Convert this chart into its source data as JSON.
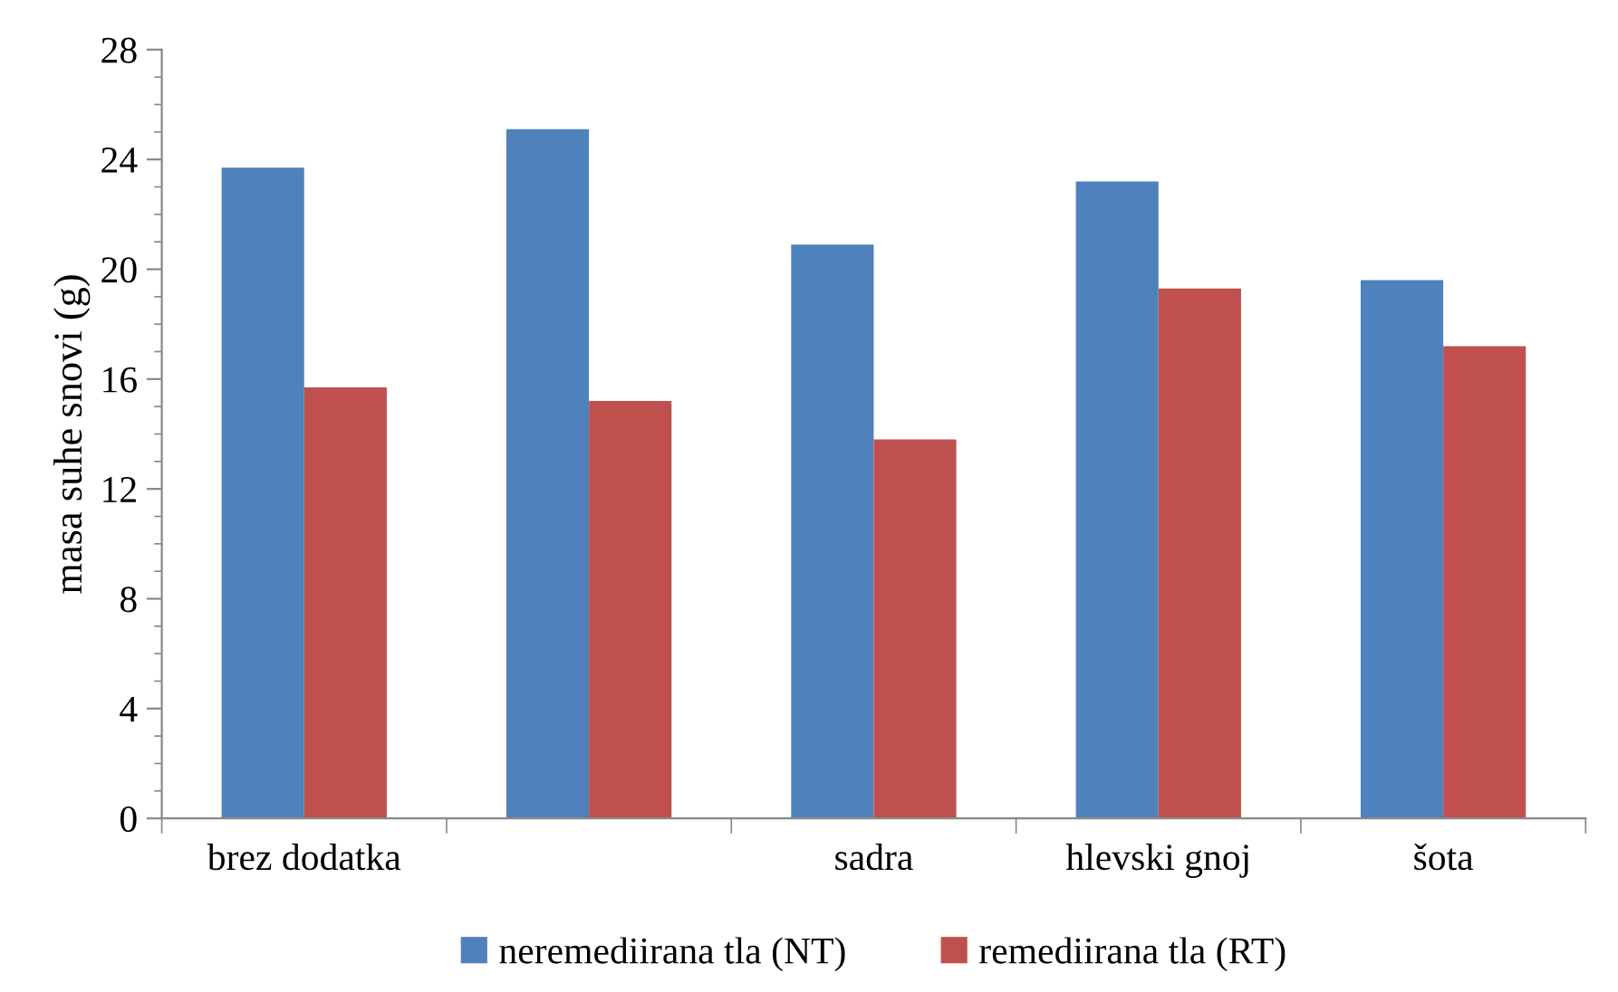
{
  "chart_data": {
    "type": "bar",
    "ylabel": "masa suhe snovi (g)",
    "categories": [
      "brez dodatka",
      null,
      "sadra",
      "hlevski gnoj",
      "šota"
    ],
    "series": [
      {
        "name": "neremediirana tla (NT)",
        "color": "#4f81bd",
        "values": [
          23.7,
          25.1,
          20.9,
          23.2,
          19.6
        ]
      },
      {
        "name": "remediirana tla (RT)",
        "color": "#c0504d",
        "values": [
          15.7,
          15.2,
          13.8,
          19.3,
          17.2
        ]
      }
    ],
    "ylim": [
      0,
      28
    ],
    "yticks": [
      0,
      4,
      8,
      12,
      16,
      20,
      24,
      28
    ],
    "grid": false,
    "legend": "bottom"
  }
}
